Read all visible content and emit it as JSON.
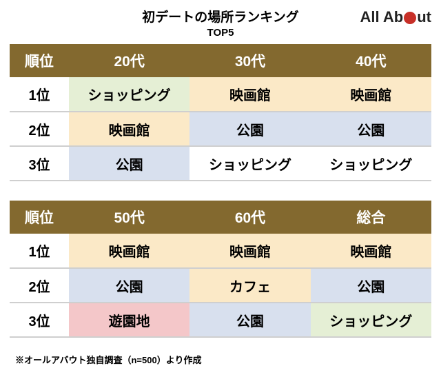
{
  "title": "初デートの場所ランキング",
  "subtitle": "TOP5",
  "logo": {
    "text_left": "All Ab",
    "text_right": "ut"
  },
  "footnote": "※オールアバウト独自調査（n=500）より作成",
  "colors": {
    "header_bg": "#83692f",
    "header_text": "#ffffff",
    "row_border": "#cfcfcf",
    "green": "#e5efd5",
    "yellow": "#fbe9c7",
    "blue": "#d8e0ee",
    "pink": "#f4c7c9",
    "white": "#ffffff",
    "logo_red": "#c73028"
  },
  "tables": [
    {
      "columns": [
        "順位",
        "20代",
        "30代",
        "40代"
      ],
      "rows": [
        {
          "rank": "1位",
          "cells": [
            {
              "text": "ショッピング",
              "bg": "green"
            },
            {
              "text": "映画館",
              "bg": "yellow"
            },
            {
              "text": "映画館",
              "bg": "yellow"
            }
          ]
        },
        {
          "rank": "2位",
          "cells": [
            {
              "text": "映画館",
              "bg": "yellow"
            },
            {
              "text": "公園",
              "bg": "blue"
            },
            {
              "text": "公園",
              "bg": "blue"
            }
          ]
        },
        {
          "rank": "3位",
          "cells": [
            {
              "text": "公園",
              "bg": "blue"
            },
            {
              "text": "ショッピング",
              "bg": "white"
            },
            {
              "text": "ショッピング",
              "bg": "white"
            }
          ]
        }
      ]
    },
    {
      "columns": [
        "順位",
        "50代",
        "60代",
        "総合"
      ],
      "rows": [
        {
          "rank": "1位",
          "cells": [
            {
              "text": "映画館",
              "bg": "yellow"
            },
            {
              "text": "映画館",
              "bg": "yellow"
            },
            {
              "text": "映画館",
              "bg": "yellow"
            }
          ]
        },
        {
          "rank": "2位",
          "cells": [
            {
              "text": "公園",
              "bg": "blue"
            },
            {
              "text": "カフェ",
              "bg": "yellow"
            },
            {
              "text": "公園",
              "bg": "blue"
            }
          ]
        },
        {
          "rank": "3位",
          "cells": [
            {
              "text": "遊園地",
              "bg": "pink"
            },
            {
              "text": "公園",
              "bg": "blue"
            },
            {
              "text": "ショッピング",
              "bg": "green"
            }
          ]
        }
      ]
    }
  ]
}
